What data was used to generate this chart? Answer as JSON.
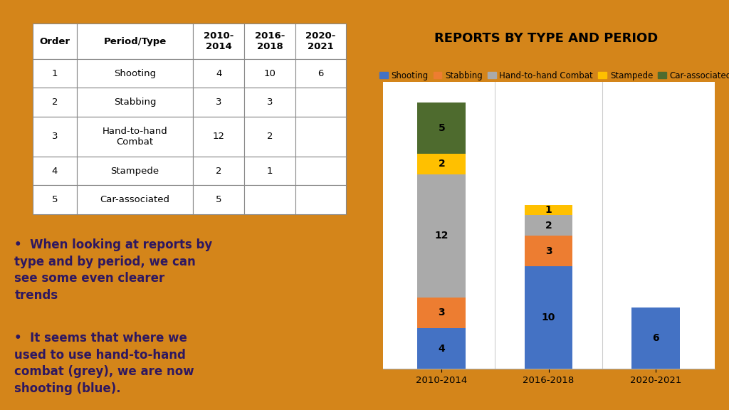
{
  "title": "REPORTS BY TYPE AND PERIOD",
  "periods": [
    "2010-2014",
    "2016-2018",
    "2020-2021"
  ],
  "categories": [
    "Shooting",
    "Stabbing",
    "Hand-to-hand Combat",
    "Stampede",
    "Car-associated"
  ],
  "colors": {
    "Shooting": "#4472C4",
    "Stabbing": "#ED7D31",
    "Hand-to-hand Combat": "#AAAAAA",
    "Stampede": "#FFC000",
    "Car-associated": "#4E6B2E"
  },
  "data": {
    "Shooting": [
      4,
      10,
      6
    ],
    "Stabbing": [
      3,
      3,
      0
    ],
    "Hand-to-hand Combat": [
      12,
      2,
      0
    ],
    "Stampede": [
      2,
      1,
      0
    ],
    "Car-associated": [
      5,
      0,
      0
    ]
  },
  "table_headers": [
    "Order",
    "Period/Type",
    "2010-\n2014",
    "2016-\n2018",
    "2020-\n2021"
  ],
  "table_rows": [
    [
      "1",
      "Shooting",
      "4",
      "10",
      "6"
    ],
    [
      "2",
      "Stabbing",
      "3",
      "3",
      ""
    ],
    [
      "3",
      "Hand-to-hand\nCombat",
      "12",
      "2",
      ""
    ],
    [
      "4",
      "Stampede",
      "2",
      "1",
      ""
    ],
    [
      "5",
      "Car-associated",
      "5",
      "",
      ""
    ]
  ],
  "bullet1": "When looking at reports by\ntype and by period, we can\nsee some even clearer\ntrends",
  "bullet2": "It seems that where we\nused to use hand-to-hand\ncombat (grey), we are now\nshooting (blue).",
  "ylim": [
    0,
    28
  ],
  "background_color": "#ffffff",
  "outer_background": "#D4851A",
  "text_color": "#2E1760",
  "title_fontsize": 13,
  "legend_fontsize": 8.5,
  "bar_width": 0.45,
  "label_fontsize": 10
}
